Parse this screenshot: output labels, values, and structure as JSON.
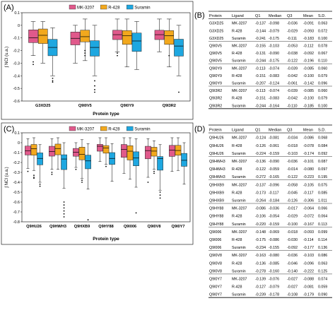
{
  "colors": {
    "MK-3207": "#e0598b",
    "R-428": "#f2a81d",
    "Suramin": "#1ea7e0"
  },
  "chart_data": [
    {
      "panel_label": "(A)",
      "type": "boxplot",
      "legend": [
        "MK-3207",
        "R-428",
        "Suramin"
      ],
      "legend_placement": "top-center",
      "xlabel": "Protein type",
      "ylabel": "∫ NCI (u.a.)",
      "ylim": [
        -0.6,
        0.1
      ],
      "yticks": [
        "0.1",
        "0",
        "-0.1",
        "-0.2",
        "-0.3",
        "-0.4",
        "-0.5",
        "-0.6"
      ],
      "categories": [
        "G3XD25",
        "Q9I0V5",
        "Q9I0Y9",
        "Q9I3R2"
      ],
      "series": [
        {
          "name": "MK-3207",
          "boxes": [
            {
              "q1": -0.137,
              "median": -0.098,
              "q3": -0.036,
              "wlo": -0.24,
              "whi": 0.03,
              "outliers": [
                -0.29,
                -0.31
              ]
            },
            {
              "q1": -0.155,
              "median": -0.103,
              "q3": -0.053,
              "wlo": -0.3,
              "whi": 0.0,
              "outliers": []
            },
            {
              "q1": -0.113,
              "median": -0.074,
              "q3": -0.039,
              "wlo": -0.21,
              "whi": 0.05,
              "outliers": [
                -0.22,
                -0.24
              ]
            },
            {
              "q1": -0.113,
              "median": -0.074,
              "q3": -0.039,
              "wlo": -0.21,
              "whi": 0.05,
              "outliers": []
            }
          ]
        },
        {
          "name": "R-428",
          "boxes": [
            {
              "q1": -0.144,
              "median": -0.079,
              "q3": -0.029,
              "wlo": -0.3,
              "whi": 0.03,
              "outliers": []
            },
            {
              "q1": -0.131,
              "median": -0.09,
              "q3": -0.038,
              "wlo": -0.28,
              "whi": 0.05,
              "outliers": [
                -0.2,
                -0.22,
                -0.24
              ]
            },
            {
              "q1": -0.151,
              "median": -0.083,
              "q3": -0.042,
              "wlo": -0.33,
              "whi": 0.05,
              "outliers": []
            },
            {
              "q1": -0.151,
              "median": -0.083,
              "q3": -0.042,
              "wlo": -0.33,
              "whi": 0.05,
              "outliers": [
                -0.24
              ]
            }
          ]
        },
        {
          "name": "Suramin",
          "boxes": [
            {
              "q1": -0.241,
              "median": -0.175,
              "q3": -0.111,
              "wlo": -0.4,
              "whi": -0.02,
              "outliers": [
                -0.42,
                -0.44,
                -0.45
              ]
            },
            {
              "q1": -0.244,
              "median": -0.175,
              "q3": -0.122,
              "wlo": -0.4,
              "whi": 0.0,
              "outliers": [
                -0.44,
                -0.48,
                -0.51,
                -0.53
              ]
            },
            {
              "q1": -0.207,
              "median": -0.124,
              "q3": -0.061,
              "wlo": -0.35,
              "whi": 0.03,
              "outliers": []
            },
            {
              "q1": -0.244,
              "median": -0.164,
              "q3": -0.11,
              "wlo": -0.4,
              "whi": 0.0,
              "outliers": [
                -0.53
              ]
            }
          ]
        }
      ]
    },
    {
      "panel_label": "(C)",
      "type": "boxplot",
      "legend": [
        "MK-3207",
        "R-428",
        "Suramin"
      ],
      "legend_placement": "top-center",
      "xlabel": "Protein type",
      "ylabel": "∫ NCI (u.a.)",
      "ylim": [
        -0.8,
        0.1
      ],
      "yticks": [
        "0.1",
        "0",
        "-0.1",
        "-0.2",
        "-0.3",
        "-0.4",
        "-0.5",
        "-0.6",
        "-0.7",
        "-0.8"
      ],
      "categories": [
        "Q9HU26",
        "Q9HWH3",
        "Q9HXB9",
        "Q9HY88",
        "Q9I006",
        "Q9I0V8",
        "Q9I0Y7"
      ],
      "series": [
        {
          "name": "MK-3207",
          "boxes": [
            {
              "q1": -0.124,
              "median": -0.081,
              "q3": -0.034,
              "wlo": -0.26,
              "whi": 0.04,
              "outliers": [
                -0.29
              ]
            },
            {
              "q1": -0.136,
              "median": -0.09,
              "q3": -0.036,
              "wlo": -0.27,
              "whi": 0.04,
              "outliers": [
                -0.3,
                -0.32
              ]
            },
            {
              "q1": -0.137,
              "median": -0.096,
              "q3": -0.058,
              "wlo": -0.25,
              "whi": 0.0,
              "outliers": [
                -0.27
              ]
            },
            {
              "q1": -0.086,
              "median": -0.036,
              "q3": -0.017,
              "wlo": -0.19,
              "whi": 0.05,
              "outliers": []
            },
            {
              "q1": -0.148,
              "median": -0.069,
              "q3": -0.018,
              "wlo": -0.31,
              "whi": 0.05,
              "outliers": []
            },
            {
              "q1": -0.163,
              "median": -0.08,
              "q3": -0.036,
              "wlo": -0.35,
              "whi": 0.04,
              "outliers": [
                -0.4
              ]
            },
            {
              "q1": -0.139,
              "median": -0.076,
              "q3": -0.027,
              "wlo": -0.29,
              "whi": 0.05,
              "outliers": []
            }
          ]
        },
        {
          "name": "R-428",
          "boxes": [
            {
              "q1": -0.126,
              "median": -0.061,
              "q3": -0.018,
              "wlo": -0.28,
              "whi": 0.05,
              "outliers": [
                -0.33,
                -0.35,
                -0.36
              ]
            },
            {
              "q1": -0.122,
              "median": -0.059,
              "q3": -0.014,
              "wlo": -0.27,
              "whi": 0.05,
              "outliers": []
            },
            {
              "q1": -0.173,
              "median": -0.117,
              "q3": -0.045,
              "wlo": -0.36,
              "whi": 0.03,
              "outliers": [
                -0.38,
                -0.4
              ]
            },
            {
              "q1": -0.106,
              "median": -0.054,
              "q3": -0.029,
              "wlo": -0.22,
              "whi": 0.05,
              "outliers": [
                -0.24
              ]
            },
            {
              "q1": -0.175,
              "median": -0.086,
              "q3": -0.03,
              "wlo": -0.37,
              "whi": 0.05,
              "outliers": []
            },
            {
              "q1": -0.136,
              "median": -0.085,
              "q3": -0.046,
              "wlo": -0.27,
              "whi": 0.02,
              "outliers": [
                -0.29,
                -0.31
              ]
            },
            {
              "q1": -0.127,
              "median": -0.079,
              "q3": -0.027,
              "wlo": -0.28,
              "whi": 0.05,
              "outliers": []
            }
          ]
        },
        {
          "name": "Suramin",
          "boxes": [
            {
              "q1": -0.224,
              "median": -0.159,
              "q3": -0.103,
              "wlo": -0.4,
              "whi": -0.02,
              "outliers": [
                -0.42,
                -0.44
              ]
            },
            {
              "q1": -0.272,
              "median": -0.165,
              "q3": -0.122,
              "wlo": -0.46,
              "whi": 0.0,
              "outliers": [
                -0.6,
                -0.63,
                -0.66,
                -0.69,
                -0.72,
                -0.75
              ]
            },
            {
              "q1": -0.264,
              "median": -0.184,
              "q3": -0.126,
              "wlo": -0.47,
              "whi": -0.01,
              "outliers": [
                -0.78
              ]
            },
            {
              "q1": -0.22,
              "median": -0.159,
              "q3": -0.1,
              "wlo": -0.39,
              "whi": -0.01,
              "outliers": []
            },
            {
              "q1": -0.234,
              "median": -0.155,
              "q3": -0.092,
              "wlo": -0.45,
              "whi": 0.04,
              "outliers": [
                -0.71
              ]
            },
            {
              "q1": -0.278,
              "median": -0.16,
              "q3": -0.14,
              "wlo": -0.48,
              "whi": -0.02,
              "outliers": [
                -0.5,
                -0.53,
                -0.56
              ]
            },
            {
              "q1": -0.239,
              "median": -0.178,
              "q3": -0.108,
              "wlo": -0.42,
              "whi": 0.0,
              "outliers": []
            }
          ]
        }
      ]
    }
  ],
  "table_b": {
    "panel_label": "(B)",
    "headers": [
      "Protein",
      "Ligand",
      "Q1",
      "Median",
      "Q3",
      "Mean",
      "S.D."
    ],
    "groups": [
      [
        [
          "G3XD25",
          "MK-3207",
          "-0.137",
          "-0.098",
          "-0.036",
          "-0.091",
          "0.063"
        ],
        [
          "G3XD25",
          "R-428",
          "-0.144",
          "-0.079",
          "-0.029",
          "-0.093",
          "0.072"
        ],
        [
          "G3XD25",
          "Suramin",
          "-0.241",
          "-0.175",
          "-0.111",
          "-0.183",
          "0.100"
        ]
      ],
      [
        [
          "Q9I0V5",
          "MK-3207",
          "-0.155",
          "-0.103",
          "-0.053",
          "-0.112",
          "0.078"
        ],
        [
          "Q9I0V5",
          "R-428",
          "-0.131",
          "-0.090",
          "-0.038",
          "-0.092",
          "0.067"
        ],
        [
          "Q9I0V5",
          "Suramin",
          "-0.244",
          "-0.175",
          "-0.122",
          "-0.196",
          "0.110"
        ]
      ],
      [
        [
          "Q9I0Y9",
          "MK-3207",
          "-0.113",
          "-0.074",
          "-0.039",
          "-0.085",
          "0.060"
        ],
        [
          "Q9I0Y9",
          "R-428",
          "-0.151",
          "-0.083",
          "-0.042",
          "-0.100",
          "0.079"
        ],
        [
          "Q9I0Y9",
          "Suramin",
          "-0.207",
          "-0.124",
          "-0.061",
          "-0.142",
          "0.096"
        ]
      ],
      [
        [
          "Q9I3R2",
          "MK-3207",
          "-0.113",
          "-0.074",
          "-0.039",
          "-0.085",
          "0.060"
        ],
        [
          "Q9I3R2",
          "R-428",
          "-0.151",
          "-0.083",
          "-0.042",
          "-0.100",
          "0.079"
        ],
        [
          "Q9I3R2",
          "Suramin",
          "-0.244",
          "-0.164",
          "-0.110",
          "-0.185",
          "0.100"
        ]
      ]
    ]
  },
  "table_d": {
    "panel_label": "(D)",
    "headers": [
      "Protein",
      "Ligand",
      "Q1",
      "Median",
      "Q3",
      "Mean",
      "S.D."
    ],
    "groups": [
      [
        [
          "Q9HU26",
          "MK-3207",
          "-0.124",
          "-0.081",
          "-0.034",
          "-0.086",
          "0.068"
        ],
        [
          "Q9HU26",
          "R-428",
          "-0.126",
          "-0.061",
          "-0.018",
          "-0.078",
          "0.084"
        ],
        [
          "Q9HU26",
          "Suramin",
          "-0.224",
          "-0.159",
          "-0.103",
          "-0.174",
          "0.092"
        ]
      ],
      [
        [
          "Q9HWH3",
          "MK-3207",
          "-0.136",
          "-0.090",
          "-0.036",
          "-0.101",
          "0.087"
        ],
        [
          "Q9HWH3",
          "R-428",
          "-0.122",
          "-0.059",
          "-0.014",
          "-0.080",
          "0.097"
        ],
        [
          "Q9HWH3",
          "Suramin",
          "-0.272",
          "-0.165",
          "-0.122",
          "-0.223",
          "0.195"
        ]
      ],
      [
        [
          "Q9HXB9",
          "MK-3207",
          "-0.137",
          "-0.096",
          "-0.058",
          "-0.105",
          "0.075"
        ],
        [
          "Q9HXB9",
          "R-428",
          "-0.173",
          "-0.117",
          "-0.045",
          "-0.117",
          "0.085"
        ],
        [
          "Q9HXB9",
          "Suramin",
          "-0.264",
          "-0.184",
          "-0.126",
          "-0.306",
          "1.011"
        ]
      ],
      [
        [
          "Q9HY88",
          "MK-3207",
          "-0.086",
          "-0.036",
          "-0.017",
          "-0.064",
          "0.066"
        ],
        [
          "Q9HY88",
          "R-428",
          "-0.106",
          "-0.054",
          "-0.029",
          "-0.072",
          "0.064"
        ],
        [
          "Q9HY88",
          "Suramin",
          "-0.220",
          "-0.159",
          "-0.100",
          "-0.167",
          "0.113"
        ]
      ],
      [
        [
          "Q9I006",
          "MK-3207",
          "-0.148",
          "-0.069",
          "-0.018",
          "-0.093",
          "0.099"
        ],
        [
          "Q9I006",
          "R-428",
          "-0.175",
          "-0.086",
          "-0.030",
          "-0.114",
          "0.114"
        ],
        [
          "Q9I006",
          "Suramin",
          "-0.234",
          "-0.155",
          "-0.092",
          "-0.177",
          "0.136"
        ]
      ],
      [
        [
          "Q9I0V8",
          "MK-3207",
          "-0.163",
          "-0.080",
          "-0.036",
          "-0.103",
          "0.086"
        ],
        [
          "Q9I0V8",
          "R-428",
          "-0.136",
          "-0.085",
          "-0.046",
          "-0.096",
          "0.063"
        ],
        [
          "Q9I0V8",
          "Suramin",
          "-0.278",
          "-0.160",
          "-0.140",
          "-0.222",
          "0.125"
        ]
      ],
      [
        [
          "Q9I0Y7",
          "MK-3207",
          "-0.139",
          "-0.076",
          "-0.027",
          "-0.088",
          "0.074"
        ],
        [
          "Q9I0Y7",
          "R-428",
          "-0.127",
          "-0.079",
          "-0.027",
          "-0.081",
          "0.059"
        ],
        [
          "Q9I0Y7",
          "Suramin",
          "-0.239",
          "-0.178",
          "-0.108",
          "-0.179",
          "0.090"
        ]
      ]
    ]
  }
}
